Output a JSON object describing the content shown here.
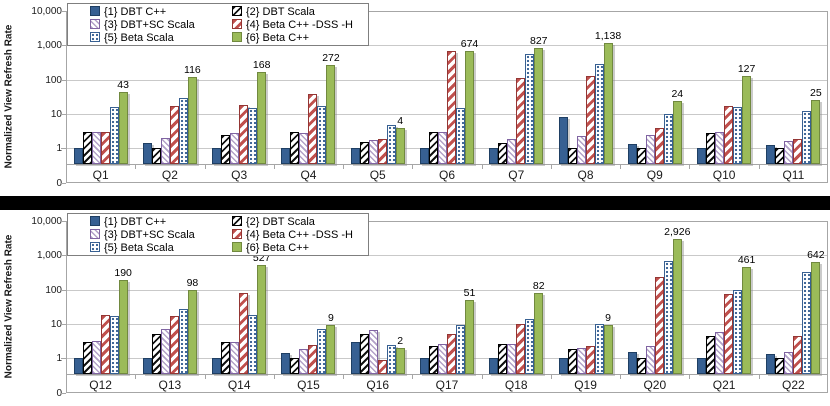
{
  "page": {
    "background": "#ffffff",
    "divider_color": "#000000"
  },
  "colors": {
    "series_blue": "#376092",
    "series_green": "#9bbb59",
    "series_red": "#c0504d",
    "series_purple": "#8064a2",
    "gridline": "#c9c9c9",
    "axis": "#a6a6a6"
  },
  "y_axis": {
    "title": "Normalized View Refresh Rate",
    "ticks": [
      "10,000",
      "1,000",
      "100",
      "10",
      "1",
      "0"
    ]
  },
  "legend": {
    "items": [
      {
        "label": "{1} DBT C++",
        "pattern": "solid-blue"
      },
      {
        "label": "{2} DBT Scala",
        "pattern": "black-hatch"
      },
      {
        "label": "{3} DBT+SC Scala",
        "pattern": "purple-hatch"
      },
      {
        "label": "{4} Beta C++ -DSS -H",
        "pattern": "red-stripe"
      },
      {
        "label": "{5} Beta Scala",
        "pattern": "blue-dots"
      },
      {
        "label": "{6} Beta C++",
        "pattern": "solid-green"
      }
    ]
  },
  "chart_data": [
    {
      "type": "bar",
      "log_scale": true,
      "ylim": [
        0.1,
        10000
      ],
      "ylabel": "Normalized View Refresh Rate",
      "grid": true,
      "legend_position": "top-left",
      "categories": [
        "Q1",
        "Q2",
        "Q3",
        "Q4",
        "Q5",
        "Q6",
        "Q7",
        "Q8",
        "Q9",
        "Q10",
        "Q11"
      ],
      "series": [
        {
          "name": "{1} DBT C++",
          "values": [
            1,
            1.4,
            1,
            1,
            1,
            1,
            1,
            8,
            1.3,
            1,
            1.2
          ]
        },
        {
          "name": "{2} DBT Scala",
          "values": [
            3,
            1,
            2.5,
            3,
            1.5,
            3,
            1.4,
            1,
            1,
            2.7,
            1
          ]
        },
        {
          "name": "{3} DBT+SC Scala",
          "values": [
            3,
            2,
            2.7,
            2.8,
            1.7,
            3,
            1.8,
            2.3,
            2.5,
            3,
            1.6
          ]
        },
        {
          "name": "{4} Beta C++ -DSS -H",
          "values": [
            3,
            17,
            18,
            38,
            1.8,
            700,
            110,
            130,
            4,
            17,
            1.8
          ]
        },
        {
          "name": "{5} Beta Scala",
          "values": [
            16,
            30,
            15,
            17,
            4.7,
            15,
            560,
            280,
            10,
            16,
            12
          ]
        },
        {
          "name": "{6} Beta C++",
          "values": [
            43,
            116,
            168,
            272,
            4,
            674,
            827,
            1138,
            24,
            127,
            25
          ]
        }
      ],
      "value_labels": {
        "series": "{6} Beta C++",
        "text": [
          "43",
          "116",
          "168",
          "272",
          "4",
          "674",
          "827",
          "1,138",
          "24",
          "127",
          "25"
        ]
      }
    },
    {
      "type": "bar",
      "log_scale": true,
      "ylim": [
        0.1,
        10000
      ],
      "ylabel": "Normalized View Refresh Rate",
      "grid": true,
      "legend_position": "top-left",
      "categories": [
        "Q12",
        "Q13",
        "Q14",
        "Q15",
        "Q16",
        "Q17",
        "Q18",
        "Q19",
        "Q20",
        "Q21",
        "Q22"
      ],
      "series": [
        {
          "name": "{1} DBT C++",
          "values": [
            1,
            1,
            1,
            1.4,
            3,
            1,
            1,
            1,
            1.5,
            1,
            1.3
          ]
        },
        {
          "name": "{2} DBT Scala",
          "values": [
            3,
            5,
            3,
            1,
            5,
            2.2,
            2.6,
            1.9,
            1,
            4.5,
            1
          ]
        },
        {
          "name": "{3} DBT+SC Scala",
          "values": [
            3.2,
            7,
            3,
            1.8,
            6.5,
            2.6,
            2.6,
            2,
            2.2,
            6,
            1.5
          ]
        },
        {
          "name": "{4} Beta C++ -DSS -H",
          "values": [
            18,
            17,
            80,
            2.5,
            0.9,
            5,
            10,
            2.3,
            230,
            75,
            4.5
          ]
        },
        {
          "name": "{5} Beta Scala",
          "values": [
            17,
            27,
            18,
            7,
            2.5,
            9.5,
            14,
            10,
            700,
            100,
            330
          ]
        },
        {
          "name": "{6} Beta C++",
          "values": [
            190,
            98,
            527,
            9,
            2,
            51,
            82,
            9,
            2926,
            461,
            642
          ]
        }
      ],
      "value_labels": {
        "series": "{6} Beta C++",
        "text": [
          "190",
          "98",
          "527",
          "9",
          "2",
          "51",
          "82",
          "9",
          "2,926",
          "461",
          "642"
        ]
      }
    }
  ]
}
